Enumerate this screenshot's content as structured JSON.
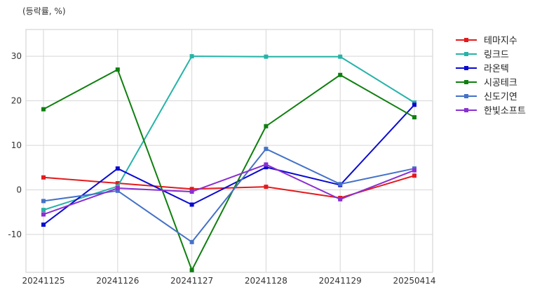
{
  "chart_data": {
    "type": "line",
    "title": "",
    "unit_label": "(등락률, %)",
    "xlabel": "",
    "ylabel": "",
    "categories": [
      "20241125",
      "20241126",
      "20241127",
      "20241128",
      "20241129",
      "20250414"
    ],
    "ylim": [
      -18.5,
      36
    ],
    "yticks": [
      -10,
      0,
      10,
      20,
      30
    ],
    "grid": true,
    "legend_position": "outside-right",
    "series": [
      {
        "name": "테마지수",
        "color": "#e31a1c",
        "values": [
          2.8,
          1.5,
          0.2,
          0.7,
          -1.8,
          3.2
        ]
      },
      {
        "name": "링크드",
        "color": "#26b3a8",
        "values": [
          -4.5,
          0.8,
          30.0,
          29.9,
          29.9,
          19.6
        ]
      },
      {
        "name": "라온텍",
        "color": "#0a0ad2",
        "values": [
          -7.8,
          4.8,
          -3.3,
          5.1,
          1.1,
          19.1
        ]
      },
      {
        "name": "시공테크",
        "color": "#0f7f0f",
        "values": [
          18.1,
          27.0,
          -18.0,
          14.3,
          25.8,
          16.3
        ]
      },
      {
        "name": "신도기연",
        "color": "#4472c8",
        "values": [
          -2.5,
          -0.2,
          -11.7,
          9.2,
          1.3,
          4.8
        ]
      },
      {
        "name": "한빛소프트",
        "color": "#8a2fd0",
        "values": [
          -5.5,
          0.4,
          -0.4,
          5.7,
          -2.1,
          4.4
        ]
      }
    ]
  }
}
